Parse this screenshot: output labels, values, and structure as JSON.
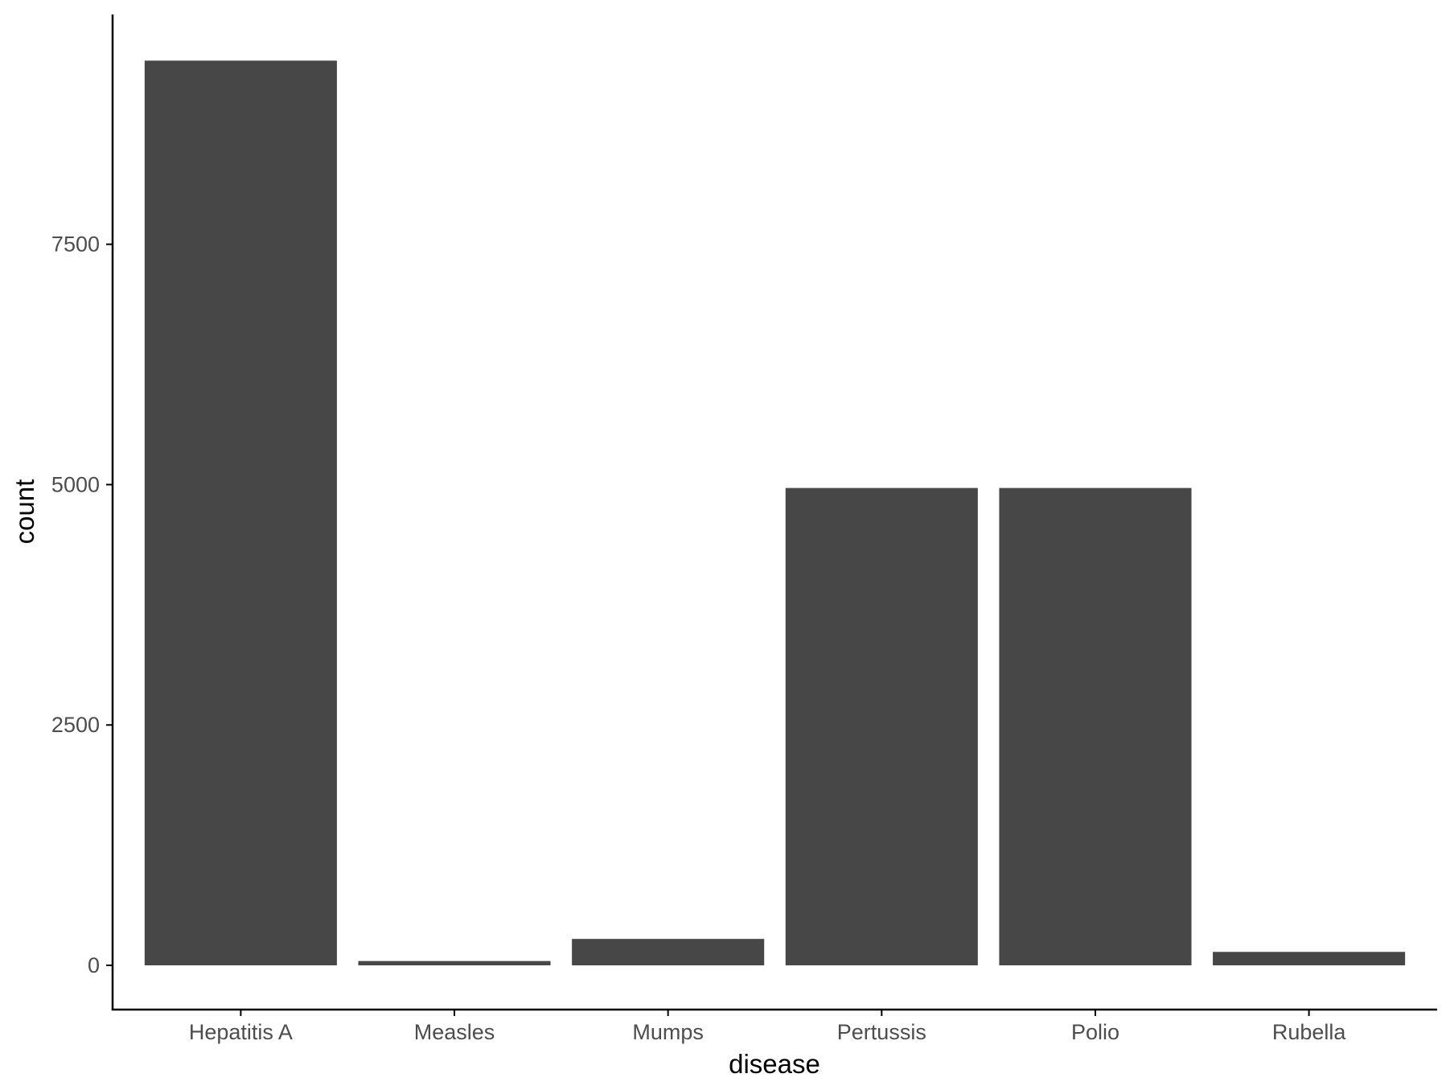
{
  "chart_data": {
    "type": "bar",
    "xlabel": "disease",
    "ylabel": "count",
    "categories": [
      "Hepatitis A",
      "Measles",
      "Mumps",
      "Pertussis",
      "Polio",
      "Rubella"
    ],
    "values": [
      9410,
      45,
      275,
      4965,
      4965,
      140
    ],
    "yticks": [
      0,
      2500,
      5000,
      7500
    ],
    "ylim": [
      -460,
      9890
    ],
    "grid": false,
    "legend": "none",
    "colors": {
      "bar": "#474747",
      "axis": "#000000",
      "tick_text": "#4d4d4d",
      "background": "#ffffff"
    }
  }
}
